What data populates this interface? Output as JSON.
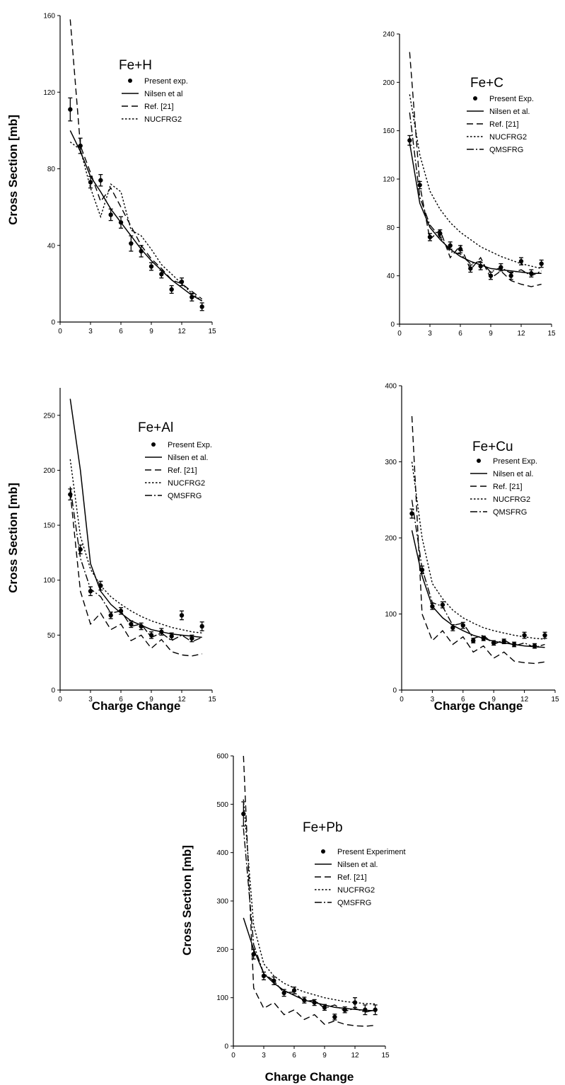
{
  "chart_data": [
    {
      "type": "line",
      "title": "Fe+H",
      "xlabel": "",
      "ylabel": "Cross Section [mb]",
      "xlim": [
        0,
        15
      ],
      "ylim": [
        0,
        160
      ],
      "xticks": [
        0,
        3,
        6,
        9,
        12,
        15
      ],
      "yticks": [
        0,
        40,
        80,
        120,
        160
      ],
      "legend": [
        "Present exp.",
        "Nilsen et al",
        "Ref. [21]",
        "NUCFRG2"
      ],
      "series": [
        {
          "name": "Present exp.",
          "style": "points",
          "x": [
            1,
            2,
            3,
            4,
            5,
            6,
            7,
            8,
            9,
            10,
            11,
            12,
            13,
            14
          ],
          "y": [
            111,
            92,
            73,
            74,
            56,
            52,
            41,
            37,
            29,
            25,
            17,
            21,
            13,
            8
          ],
          "err": [
            6,
            4,
            3,
            3,
            3,
            3,
            4,
            3,
            2,
            2,
            2,
            2,
            2,
            2
          ]
        },
        {
          "name": "Nilsen et al",
          "style": "solid",
          "x": [
            1,
            2,
            3,
            4,
            5,
            6,
            7,
            8,
            9,
            10,
            11,
            12,
            13,
            14
          ],
          "y": [
            100,
            89,
            76,
            68,
            59,
            52,
            45,
            38,
            32,
            27,
            22,
            18,
            14,
            11
          ]
        },
        {
          "name": "Ref. [21]",
          "style": "dashed",
          "x": [
            1,
            2,
            3,
            4,
            5,
            6,
            7,
            8,
            9,
            10,
            11,
            12,
            13,
            14
          ],
          "y": [
            158,
            92,
            78,
            63,
            70,
            60,
            50,
            40,
            33,
            28,
            22,
            20,
            16,
            12
          ]
        },
        {
          "name": "NUCFRG2",
          "style": "dotted",
          "x": [
            1,
            2,
            3,
            4,
            5,
            6,
            7,
            8,
            9,
            10,
            11,
            12,
            13,
            14
          ],
          "y": [
            94,
            90,
            70,
            55,
            72,
            68,
            48,
            45,
            38,
            30,
            25,
            20,
            15,
            11
          ]
        }
      ]
    },
    {
      "type": "line",
      "title": "Fe+C",
      "xlabel": "",
      "ylabel": "",
      "xlim": [
        0,
        15
      ],
      "ylim": [
        0,
        240
      ],
      "xticks": [
        0,
        3,
        6,
        9,
        12,
        15
      ],
      "yticks": [
        0,
        40,
        80,
        120,
        160,
        200,
        240
      ],
      "legend": [
        "Present Exp.",
        "Nilsen et al.",
        "Ref. [21]",
        "NUCFRG2",
        "QMSFRG"
      ],
      "series": [
        {
          "name": "Present Exp.",
          "style": "points",
          "x": [
            1,
            2,
            3,
            4,
            5,
            6,
            7,
            8,
            9,
            10,
            11,
            12,
            13,
            14
          ],
          "y": [
            152,
            115,
            72,
            75,
            65,
            62,
            46,
            48,
            40,
            47,
            40,
            52,
            42,
            50
          ],
          "err": [
            4,
            3,
            3,
            3,
            3,
            3,
            3,
            3,
            3,
            3,
            3,
            3,
            3,
            3
          ]
        },
        {
          "name": "Nilsen et al.",
          "style": "solid",
          "x": [
            1,
            2,
            3,
            4,
            5,
            6,
            7,
            8,
            9,
            10,
            11,
            12,
            13,
            14
          ],
          "y": [
            150,
            100,
            80,
            70,
            62,
            56,
            52,
            49,
            46,
            45,
            44,
            43,
            42,
            42
          ]
        },
        {
          "name": "Ref. [21]",
          "style": "dashed",
          "x": [
            1,
            2,
            3,
            4,
            5,
            6,
            7,
            8,
            9,
            10,
            11,
            12,
            13,
            14
          ],
          "y": [
            225,
            115,
            70,
            78,
            55,
            65,
            45,
            55,
            38,
            44,
            36,
            33,
            31,
            33
          ]
        },
        {
          "name": "NUCFRG2",
          "style": "dotted",
          "x": [
            1,
            2,
            3,
            4,
            5,
            6,
            7,
            8,
            9,
            10,
            11,
            12,
            13,
            14
          ],
          "y": [
            190,
            140,
            110,
            95,
            84,
            76,
            70,
            64,
            60,
            56,
            53,
            50,
            48,
            46
          ]
        },
        {
          "name": "QMSFRG",
          "style": "dashdot",
          "x": [
            1,
            2,
            3,
            4,
            5,
            6,
            7,
            8,
            9,
            10,
            11,
            12,
            13,
            14
          ],
          "y": [
            175,
            105,
            82,
            72,
            60,
            58,
            50,
            52,
            43,
            47,
            42,
            45,
            40,
            44
          ]
        }
      ]
    },
    {
      "type": "line",
      "title": "Fe+Al",
      "xlabel": "Charge  Change",
      "ylabel": "Cross Section [mb]",
      "xlim": [
        0,
        15
      ],
      "ylim": [
        0,
        275
      ],
      "xticks": [
        0,
        3,
        6,
        9,
        12,
        15
      ],
      "yticks": [
        0,
        50,
        100,
        150,
        200,
        250
      ],
      "legend": [
        "Present Exp.",
        "Nilsen et al.",
        "Ref. [21]",
        "NUCFRG2",
        "QMSFRG"
      ],
      "series": [
        {
          "name": "Present Exp.",
          "style": "points",
          "x": [
            1,
            2,
            3,
            4,
            5,
            6,
            7,
            8,
            9,
            10,
            11,
            12,
            13,
            14
          ],
          "y": [
            178,
            128,
            90,
            95,
            68,
            72,
            60,
            58,
            50,
            53,
            49,
            68,
            47,
            58
          ],
          "err": [
            5,
            4,
            4,
            4,
            3,
            3,
            3,
            3,
            3,
            3,
            3,
            4,
            3,
            4
          ]
        },
        {
          "name": "Nilsen et al.",
          "style": "solid",
          "x": [
            1,
            2,
            3,
            4,
            5,
            6,
            7,
            8,
            9,
            10,
            11,
            12,
            13,
            14
          ],
          "y": [
            265,
            200,
            115,
            90,
            78,
            70,
            63,
            59,
            55,
            53,
            51,
            50,
            49,
            48
          ]
        },
        {
          "name": "Ref. [21]",
          "style": "dashed",
          "x": [
            1,
            2,
            3,
            4,
            5,
            6,
            7,
            8,
            9,
            10,
            11,
            12,
            13,
            14
          ],
          "y": [
            180,
            90,
            60,
            70,
            55,
            60,
            45,
            50,
            38,
            46,
            35,
            32,
            31,
            33
          ]
        },
        {
          "name": "NUCFRG2",
          "style": "dotted",
          "x": [
            1,
            2,
            3,
            4,
            5,
            6,
            7,
            8,
            9,
            10,
            11,
            12,
            13,
            14
          ],
          "y": [
            210,
            140,
            110,
            95,
            85,
            78,
            72,
            67,
            63,
            60,
            57,
            55,
            53,
            52
          ]
        },
        {
          "name": "QMSFRG",
          "style": "dashdot",
          "x": [
            1,
            2,
            3,
            4,
            5,
            6,
            7,
            8,
            9,
            10,
            11,
            12,
            13,
            14
          ],
          "y": [
            185,
            120,
            92,
            85,
            70,
            72,
            58,
            60,
            48,
            52,
            45,
            50,
            44,
            48
          ]
        }
      ]
    },
    {
      "type": "line",
      "title": "Fe+Cu",
      "xlabel": "Charge  Change",
      "ylabel": "",
      "xlim": [
        0,
        15
      ],
      "ylim": [
        0,
        400
      ],
      "xticks": [
        0,
        3,
        6,
        9,
        12,
        15
      ],
      "yticks": [
        0,
        100,
        200,
        300,
        400
      ],
      "legend": [
        "Present Exp.",
        "Nilsen et al.",
        "Ref. [21]",
        "NUCFRG2",
        "QMSFRG"
      ],
      "series": [
        {
          "name": "Present Exp.",
          "style": "points",
          "x": [
            1,
            2,
            3,
            4,
            5,
            6,
            7,
            8,
            9,
            10,
            11,
            12,
            13,
            14
          ],
          "y": [
            232,
            158,
            110,
            112,
            82,
            85,
            65,
            68,
            62,
            64,
            60,
            72,
            58,
            72
          ],
          "err": [
            6,
            5,
            4,
            4,
            4,
            4,
            3,
            3,
            3,
            3,
            3,
            4,
            3,
            4
          ]
        },
        {
          "name": "Nilsen et al.",
          "style": "solid",
          "x": [
            1,
            2,
            3,
            4,
            5,
            6,
            7,
            8,
            9,
            10,
            11,
            12,
            13,
            14
          ],
          "y": [
            210,
            150,
            110,
            95,
            85,
            78,
            72,
            68,
            64,
            62,
            60,
            58,
            57,
            56
          ]
        },
        {
          "name": "Ref. [21]",
          "style": "dashed",
          "x": [
            1,
            2,
            3,
            4,
            5,
            6,
            7,
            8,
            9,
            10,
            11,
            12,
            13,
            14
          ],
          "y": [
            360,
            100,
            65,
            78,
            60,
            70,
            50,
            58,
            42,
            50,
            38,
            36,
            35,
            37
          ]
        },
        {
          "name": "NUCFRG2",
          "style": "dotted",
          "x": [
            1,
            2,
            3,
            4,
            5,
            6,
            7,
            8,
            9,
            10,
            11,
            12,
            13,
            14
          ],
          "y": [
            300,
            200,
            140,
            120,
            105,
            95,
            88,
            82,
            78,
            75,
            72,
            70,
            68,
            67
          ]
        },
        {
          "name": "QMSFRG",
          "style": "dashdot",
          "x": [
            1,
            2,
            3,
            4,
            5,
            6,
            7,
            8,
            9,
            10,
            11,
            12,
            13,
            14
          ],
          "y": [
            250,
            160,
            115,
            110,
            85,
            88,
            68,
            72,
            60,
            66,
            58,
            62,
            56,
            60
          ]
        }
      ]
    },
    {
      "type": "line",
      "title": "Fe+Pb",
      "xlabel": "Charge  Change",
      "ylabel": "Cross Section [mb]",
      "xlim": [
        0,
        15
      ],
      "ylim": [
        0,
        600
      ],
      "xticks": [
        0,
        3,
        6,
        9,
        12,
        15
      ],
      "yticks": [
        0,
        100,
        200,
        300,
        400,
        500,
        600
      ],
      "legend": [
        "Present Experiment",
        "Nilsen et al.",
        "Ref. [21]",
        "NUCFRG2",
        "QMSFRG"
      ],
      "series": [
        {
          "name": "Present Experiment",
          "style": "points",
          "x": [
            1,
            2,
            3,
            4,
            5,
            6,
            7,
            8,
            9,
            10,
            11,
            12,
            13,
            14
          ],
          "y": [
            480,
            190,
            145,
            135,
            110,
            115,
            95,
            90,
            80,
            60,
            75,
            90,
            75,
            75
          ],
          "err": [
            25,
            10,
            8,
            8,
            7,
            7,
            6,
            6,
            6,
            6,
            6,
            10,
            10,
            10
          ]
        },
        {
          "name": "Nilsen et al.",
          "style": "solid",
          "x": [
            1,
            2,
            3,
            4,
            5,
            6,
            7,
            8,
            9,
            10,
            11,
            12,
            13,
            14
          ],
          "y": [
            265,
            200,
            150,
            130,
            115,
            105,
            95,
            90,
            85,
            80,
            78,
            76,
            74,
            73
          ]
        },
        {
          "name": "Ref. [21]",
          "style": "dashed",
          "x": [
            1,
            2,
            3,
            4,
            5,
            6,
            7,
            8,
            9,
            10,
            11,
            12,
            13,
            14
          ],
          "y": [
            600,
            120,
            78,
            90,
            65,
            75,
            55,
            65,
            45,
            52,
            45,
            42,
            41,
            43
          ]
        },
        {
          "name": "NUCFRG2",
          "style": "dotted",
          "x": [
            1,
            2,
            3,
            4,
            5,
            6,
            7,
            8,
            9,
            10,
            11,
            12,
            13,
            14
          ],
          "y": [
            510,
            250,
            170,
            145,
            130,
            120,
            112,
            106,
            100,
            96,
            92,
            90,
            88,
            87
          ]
        },
        {
          "name": "QMSFRG",
          "style": "dashdot",
          "x": [
            1,
            2,
            3,
            4,
            5,
            6,
            7,
            8,
            9,
            10,
            11,
            12,
            13,
            14
          ],
          "y": [
            450,
            210,
            150,
            135,
            110,
            112,
            92,
            95,
            78,
            85,
            72,
            78,
            70,
            75
          ]
        }
      ]
    }
  ]
}
